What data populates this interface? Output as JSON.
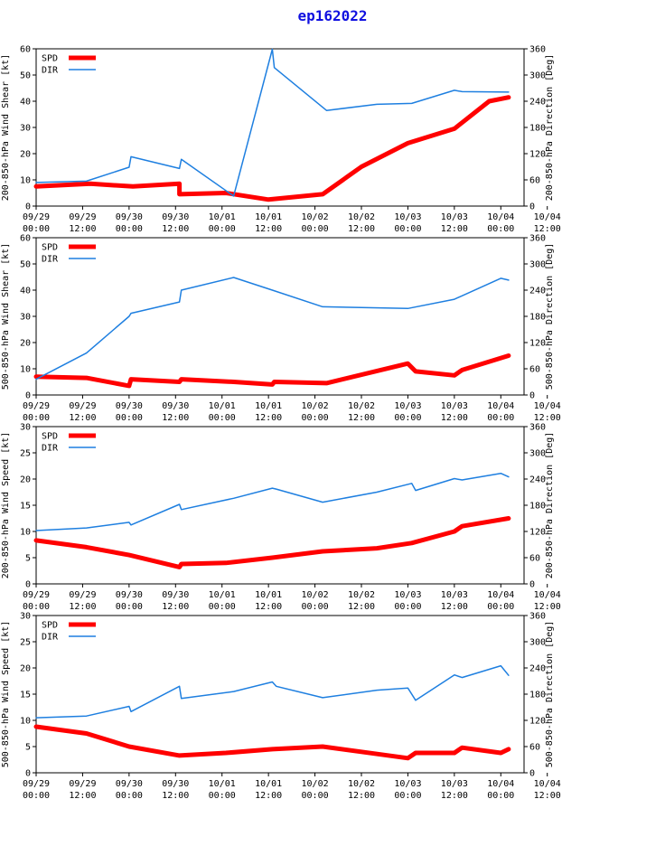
{
  "title": "ep162022",
  "colors": {
    "spd": "#ff0000",
    "dir": "#1e7fe0",
    "axis": "#000000",
    "title": "#1010e0"
  },
  "chart_data": [
    {
      "type": "line",
      "ylabel_left": "200-850-hPa Wind Shear [kt]",
      "ylabel_right": "200-850-hPa Direction [Deg]",
      "ylim_left": [
        0,
        60
      ],
      "yticks_left": [
        0,
        10,
        20,
        30,
        40,
        50,
        60
      ],
      "ylim_right": [
        0,
        360
      ],
      "yticks_right": [
        0,
        60,
        120,
        180,
        240,
        300,
        360
      ],
      "xlim": [
        0,
        126
      ],
      "xticks": [
        0,
        12,
        24,
        36,
        48,
        60,
        72,
        84,
        96,
        108,
        120,
        132
      ],
      "xtick_labels": [
        [
          "09/29",
          "00:00"
        ],
        [
          "09/29",
          "12:00"
        ],
        [
          "09/30",
          "00:00"
        ],
        [
          "09/30",
          "12:00"
        ],
        [
          "10/01",
          "00:00"
        ],
        [
          "10/01",
          "12:00"
        ],
        [
          "10/02",
          "00:00"
        ],
        [
          "10/02",
          "12:00"
        ],
        [
          "10/03",
          "00:00"
        ],
        [
          "10/03",
          "12:00"
        ],
        [
          "10/04",
          "00:00"
        ],
        [
          "10/04",
          "12:00"
        ]
      ],
      "legend": {
        "spd": "SPD",
        "dir": "DIR",
        "position": "top-left"
      },
      "series": [
        {
          "name": "SPD",
          "axis": "left",
          "x": [
            0,
            14,
            25,
            37,
            37,
            49,
            60,
            74,
            84,
            96,
            108,
            117,
            122
          ],
          "y": [
            7.5,
            8.5,
            7.5,
            8.5,
            4.5,
            5,
            2.5,
            4.5,
            15,
            24,
            29.5,
            40,
            41.5
          ]
        },
        {
          "name": "DIR",
          "axis": "right",
          "x": [
            0,
            13,
            24,
            24.5,
            37,
            37.5,
            51,
            61,
            61.5,
            75,
            88,
            97,
            108,
            110,
            122
          ],
          "y": [
            54,
            57,
            89,
            113,
            86,
            107,
            23,
            359,
            317,
            219,
            233,
            235,
            265,
            262,
            261
          ]
        }
      ]
    },
    {
      "type": "line",
      "ylabel_left": "500-850-hPa Wind Shear [kt]",
      "ylabel_right": "500-850-hPa Direction [Deg]",
      "ylim_left": [
        0,
        60
      ],
      "yticks_left": [
        0,
        10,
        20,
        30,
        40,
        50,
        60
      ],
      "ylim_right": [
        0,
        360
      ],
      "yticks_right": [
        0,
        60,
        120,
        180,
        240,
        300,
        360
      ],
      "xlim": [
        0,
        126
      ],
      "xticks": [
        0,
        12,
        24,
        36,
        48,
        60,
        72,
        84,
        96,
        108,
        120,
        132
      ],
      "xtick_labels": [
        [
          "09/29",
          "00:00"
        ],
        [
          "09/29",
          "12:00"
        ],
        [
          "09/30",
          "00:00"
        ],
        [
          "09/30",
          "12:00"
        ],
        [
          "10/01",
          "00:00"
        ],
        [
          "10/01",
          "12:00"
        ],
        [
          "10/02",
          "00:00"
        ],
        [
          "10/02",
          "12:00"
        ],
        [
          "10/03",
          "00:00"
        ],
        [
          "10/03",
          "12:00"
        ],
        [
          "10/04",
          "00:00"
        ],
        [
          "10/04",
          "12:00"
        ]
      ],
      "legend": {
        "spd": "SPD",
        "dir": "DIR",
        "position": "top-left"
      },
      "series": [
        {
          "name": "SPD",
          "axis": "left",
          "x": [
            0,
            13,
            24,
            24.5,
            37,
            37.5,
            51,
            61,
            61.5,
            75,
            96,
            98,
            108,
            110,
            122
          ],
          "y": [
            7,
            6.5,
            3.5,
            6,
            5,
            6,
            5,
            4,
            5,
            4.5,
            12,
            9,
            7.5,
            9.5,
            15
          ]
        },
        {
          "name": "DIR",
          "axis": "right",
          "x": [
            0,
            13,
            24,
            24.5,
            37,
            37.5,
            51,
            61,
            74,
            96,
            108,
            120,
            122
          ],
          "y": [
            36,
            96,
            180,
            187,
            213,
            240,
            269,
            240,
            202,
            198,
            219,
            267,
            263
          ]
        }
      ]
    },
    {
      "type": "line",
      "ylabel_left": "200-850-hPa Wind Speed [kt]",
      "ylabel_right": "200-850-hPa Direction [Deg]",
      "ylim_left": [
        0,
        30
      ],
      "yticks_left": [
        0,
        5,
        10,
        15,
        20,
        25,
        30
      ],
      "ylim_right": [
        0,
        360
      ],
      "yticks_right": [
        0,
        60,
        120,
        180,
        240,
        300,
        360
      ],
      "xlim": [
        0,
        126
      ],
      "xticks": [
        0,
        12,
        24,
        36,
        48,
        60,
        72,
        84,
        96,
        108,
        120,
        132
      ],
      "xtick_labels": [
        [
          "09/29",
          "00:00"
        ],
        [
          "09/29",
          "12:00"
        ],
        [
          "09/30",
          "00:00"
        ],
        [
          "09/30",
          "12:00"
        ],
        [
          "10/01",
          "00:00"
        ],
        [
          "10/01",
          "12:00"
        ],
        [
          "10/02",
          "00:00"
        ],
        [
          "10/02",
          "12:00"
        ],
        [
          "10/03",
          "00:00"
        ],
        [
          "10/03",
          "12:00"
        ],
        [
          "10/04",
          "00:00"
        ],
        [
          "10/04",
          "12:00"
        ]
      ],
      "legend": {
        "spd": "SPD",
        "dir": "DIR",
        "position": "top-left"
      },
      "series": [
        {
          "name": "SPD",
          "axis": "left",
          "x": [
            0,
            13,
            24,
            37,
            37.5,
            49,
            61,
            74,
            88,
            97,
            108,
            110,
            122
          ],
          "y": [
            8.3,
            7,
            5.5,
            3.2,
            3.8,
            4,
            5,
            6.2,
            6.8,
            7.8,
            10,
            11,
            12.5
          ]
        },
        {
          "name": "DIR",
          "axis": "right",
          "x": [
            0,
            13,
            24,
            24.5,
            37,
            37.5,
            51,
            61,
            62,
            74,
            88,
            97,
            98,
            108,
            110,
            120,
            122
          ],
          "y": [
            122,
            128,
            141,
            135,
            182,
            170,
            196,
            219,
            217,
            187,
            210,
            230,
            214,
            241,
            238,
            253,
            245
          ]
        }
      ]
    },
    {
      "type": "line",
      "ylabel_left": "500-850-hPa Wind Speed [kt]",
      "ylabel_right": "500-850-hPa Direction [Deg]",
      "ylim_left": [
        0,
        30
      ],
      "yticks_left": [
        0,
        5,
        10,
        15,
        20,
        25,
        30
      ],
      "ylim_right": [
        0,
        360
      ],
      "yticks_right": [
        0,
        60,
        120,
        180,
        240,
        300,
        360
      ],
      "xlim": [
        0,
        126
      ],
      "xticks": [
        0,
        12,
        24,
        36,
        48,
        60,
        72,
        84,
        96,
        108,
        120,
        132
      ],
      "xtick_labels": [
        [
          "09/29",
          "00:00"
        ],
        [
          "09/29",
          "12:00"
        ],
        [
          "09/30",
          "00:00"
        ],
        [
          "09/30",
          "12:00"
        ],
        [
          "10/01",
          "00:00"
        ],
        [
          "10/01",
          "12:00"
        ],
        [
          "10/02",
          "00:00"
        ],
        [
          "10/02",
          "12:00"
        ],
        [
          "10/03",
          "00:00"
        ],
        [
          "10/03",
          "12:00"
        ],
        [
          "10/04",
          "00:00"
        ],
        [
          "10/04",
          "12:00"
        ]
      ],
      "legend": {
        "spd": "SPD",
        "dir": "DIR",
        "position": "top-left"
      },
      "series": [
        {
          "name": "SPD",
          "axis": "left",
          "x": [
            0,
            13,
            24,
            37,
            49,
            61,
            74,
            84,
            96,
            98,
            108,
            110,
            120,
            122
          ],
          "y": [
            8.8,
            7.5,
            5,
            3.3,
            3.8,
            4.5,
            5,
            4,
            2.8,
            3.8,
            3.8,
            4.8,
            3.8,
            4.5
          ]
        },
        {
          "name": "DIR",
          "axis": "right",
          "x": [
            0,
            13,
            24,
            24.5,
            37,
            37.5,
            51,
            61,
            62,
            74,
            88,
            96,
            98,
            108,
            110,
            120,
            122
          ],
          "y": [
            126,
            130,
            152,
            140,
            198,
            170,
            186,
            208,
            198,
            172,
            189,
            194,
            166,
            224,
            218,
            245,
            223
          ]
        }
      ]
    }
  ]
}
